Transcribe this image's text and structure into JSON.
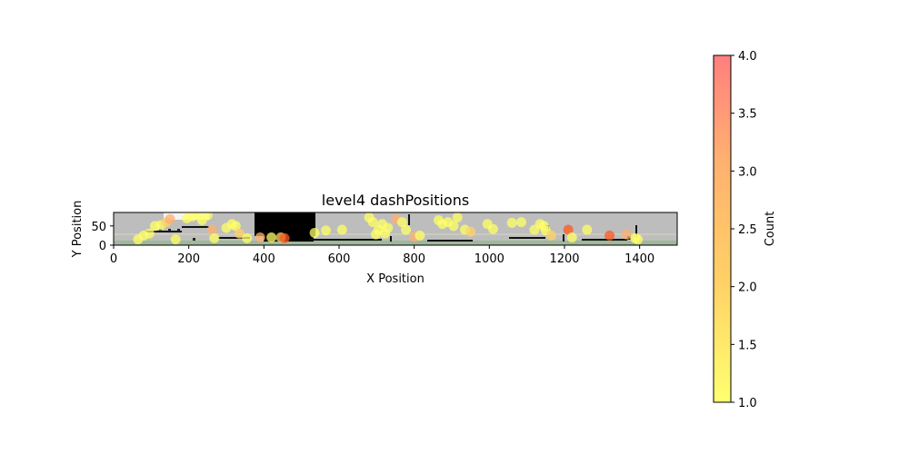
{
  "chart_data": {
    "type": "scatter",
    "title": "level4 dashPositions",
    "xlabel": "X Position",
    "ylabel": "Y Position",
    "xlim": [
      0,
      1500
    ],
    "ylim": [
      0,
      85
    ],
    "xticks": [
      0,
      200,
      400,
      600,
      800,
      1000,
      1200,
      1400
    ],
    "yticks": [
      0,
      50
    ],
    "grid": false,
    "background": "level map image",
    "colorbar": {
      "label": "Count",
      "range": [
        1.0,
        4.0
      ],
      "ticks": [
        "1.0",
        "1.5",
        "2.0",
        "2.5",
        "3.0",
        "3.5",
        "4.0"
      ],
      "colormap": [
        "#ffff66",
        "#ffd166",
        "#ffb070",
        "#ff8080"
      ]
    },
    "points": [
      {
        "x": 65,
        "y": 15,
        "count": 1
      },
      {
        "x": 80,
        "y": 25,
        "count": 1
      },
      {
        "x": 95,
        "y": 30,
        "count": 1
      },
      {
        "x": 110,
        "y": 50,
        "count": 1
      },
      {
        "x": 125,
        "y": 52,
        "count": 1
      },
      {
        "x": 140,
        "y": 60,
        "count": 2
      },
      {
        "x": 150,
        "y": 68,
        "count": 3
      },
      {
        "x": 165,
        "y": 15,
        "count": 1
      },
      {
        "x": 195,
        "y": 70,
        "count": 1
      },
      {
        "x": 210,
        "y": 75,
        "count": 1
      },
      {
        "x": 225,
        "y": 80,
        "count": 1
      },
      {
        "x": 235,
        "y": 65,
        "count": 1
      },
      {
        "x": 250,
        "y": 78,
        "count": 1
      },
      {
        "x": 262,
        "y": 40,
        "count": 3
      },
      {
        "x": 268,
        "y": 18,
        "count": 1
      },
      {
        "x": 300,
        "y": 45,
        "count": 1
      },
      {
        "x": 315,
        "y": 55,
        "count": 1
      },
      {
        "x": 325,
        "y": 50,
        "count": 1
      },
      {
        "x": 335,
        "y": 30,
        "count": 2
      },
      {
        "x": 355,
        "y": 18,
        "count": 1
      },
      {
        "x": 390,
        "y": 20,
        "count": 3
      },
      {
        "x": 420,
        "y": 20,
        "count": 1
      },
      {
        "x": 445,
        "y": 20,
        "count": 2
      },
      {
        "x": 455,
        "y": 18,
        "count": 4
      },
      {
        "x": 535,
        "y": 32,
        "count": 1
      },
      {
        "x": 565,
        "y": 38,
        "count": 1
      },
      {
        "x": 608,
        "y": 40,
        "count": 1
      },
      {
        "x": 680,
        "y": 72,
        "count": 1
      },
      {
        "x": 690,
        "y": 60,
        "count": 1
      },
      {
        "x": 698,
        "y": 28,
        "count": 1
      },
      {
        "x": 705,
        "y": 40,
        "count": 1
      },
      {
        "x": 715,
        "y": 55,
        "count": 1
      },
      {
        "x": 722,
        "y": 30,
        "count": 1
      },
      {
        "x": 730,
        "y": 45,
        "count": 1
      },
      {
        "x": 752,
        "y": 68,
        "count": 3
      },
      {
        "x": 768,
        "y": 60,
        "count": 1
      },
      {
        "x": 778,
        "y": 40,
        "count": 1
      },
      {
        "x": 800,
        "y": 22,
        "count": 3
      },
      {
        "x": 815,
        "y": 25,
        "count": 1
      },
      {
        "x": 865,
        "y": 65,
        "count": 1
      },
      {
        "x": 875,
        "y": 55,
        "count": 1
      },
      {
        "x": 890,
        "y": 60,
        "count": 1
      },
      {
        "x": 905,
        "y": 50,
        "count": 1
      },
      {
        "x": 915,
        "y": 72,
        "count": 1
      },
      {
        "x": 935,
        "y": 40,
        "count": 1
      },
      {
        "x": 950,
        "y": 35,
        "count": 2
      },
      {
        "x": 995,
        "y": 55,
        "count": 1
      },
      {
        "x": 1010,
        "y": 42,
        "count": 1
      },
      {
        "x": 1060,
        "y": 58,
        "count": 1
      },
      {
        "x": 1085,
        "y": 60,
        "count": 1
      },
      {
        "x": 1120,
        "y": 40,
        "count": 1
      },
      {
        "x": 1135,
        "y": 55,
        "count": 1
      },
      {
        "x": 1145,
        "y": 50,
        "count": 1
      },
      {
        "x": 1150,
        "y": 38,
        "count": 1
      },
      {
        "x": 1165,
        "y": 25,
        "count": 2
      },
      {
        "x": 1210,
        "y": 40,
        "count": 4
      },
      {
        "x": 1220,
        "y": 20,
        "count": 1
      },
      {
        "x": 1260,
        "y": 40,
        "count": 1
      },
      {
        "x": 1320,
        "y": 25,
        "count": 4
      },
      {
        "x": 1365,
        "y": 28,
        "count": 3
      },
      {
        "x": 1388,
        "y": 18,
        "count": 1
      },
      {
        "x": 1395,
        "y": 15,
        "count": 1
      }
    ]
  }
}
